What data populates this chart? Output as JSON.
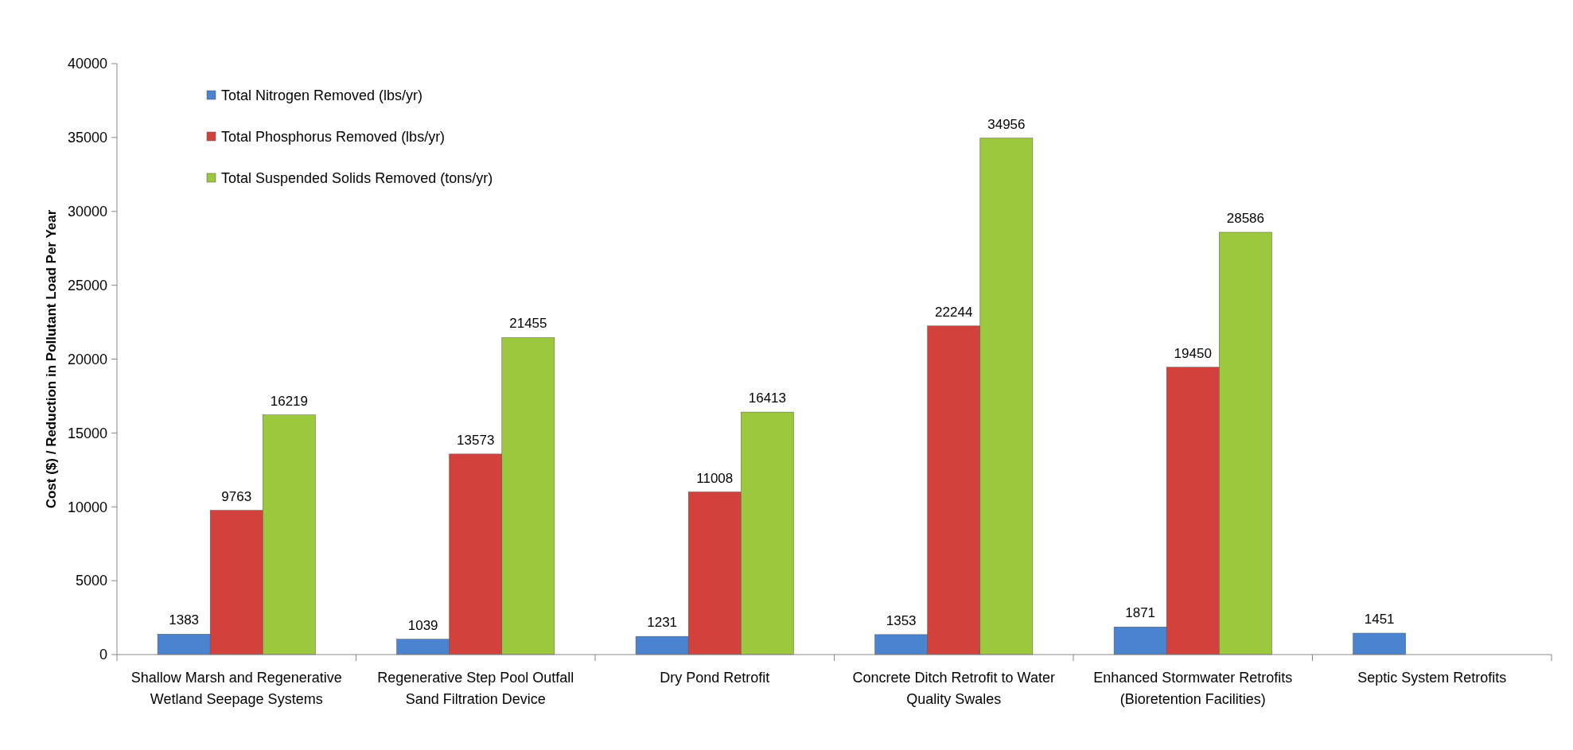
{
  "chart_data": {
    "type": "bar",
    "ylabel": "Cost ($) / Reduction in Pollutant Load Per Year",
    "categories": [
      "Shallow Marsh and Regenerative Wetland Seepage Systems",
      "Regenerative Step Pool Outfall Sand Filtration Device",
      "Dry Pond Retrofit",
      "Concrete Ditch Retrofit to Water Quality Swales",
      "Enhanced Stormwater Retrofits (Bioretention Facilities)",
      "Septic System Retrofits"
    ],
    "series": [
      {
        "name": "Total Nitrogen Removed (lbs/yr)",
        "color": "#4a84d0",
        "values": [
          1383,
          1039,
          1231,
          1353,
          1871,
          1451
        ]
      },
      {
        "name": "Total Phosphorus Removed (lbs/yr)",
        "color": "#d2413c",
        "values": [
          9763,
          13573,
          11008,
          22244,
          19450,
          null
        ]
      },
      {
        "name": "Total Suspended Solids Removed (tons/yr)",
        "color": "#9cc83e",
        "values": [
          16219,
          21455,
          16413,
          34956,
          28586,
          null
        ]
      }
    ],
    "ylim": [
      0,
      40000
    ],
    "yticks": [
      0,
      5000,
      10000,
      15000,
      20000,
      25000,
      30000,
      35000,
      40000
    ],
    "data_labels": true,
    "legend": "top left",
    "grid": false
  }
}
